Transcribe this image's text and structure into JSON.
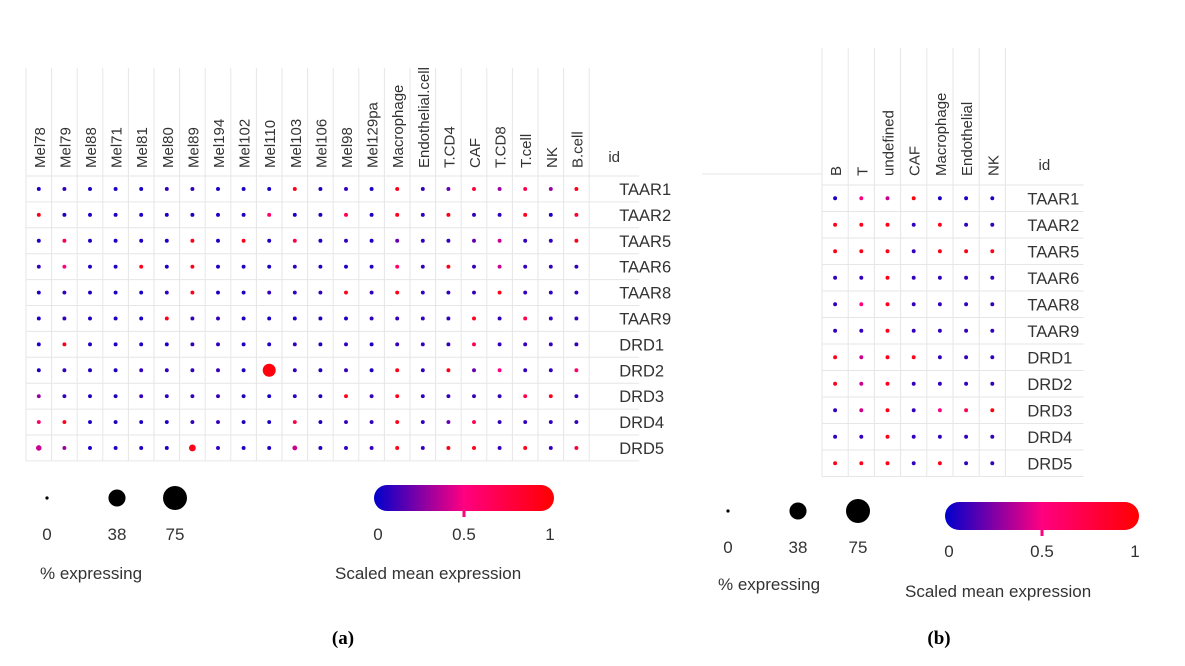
{
  "chart_data": [
    {
      "type": "dotplot",
      "panel_label": "(a)",
      "columns": [
        "Mel78",
        "Mel79",
        "Mel88",
        "Mel71",
        "Mel81",
        "Mel80",
        "Mel89",
        "Mel194",
        "Mel102",
        "Mel110",
        "Mel103",
        "Mel106",
        "Mel98",
        "Mel129pa",
        "Macrophage",
        "Endothelial.cell",
        "T.CD4",
        "CAF",
        "T.CD8",
        "T.cell",
        "NK",
        "B.cell"
      ],
      "id_header": "id",
      "rows": [
        "TAAR1",
        "TAAR2",
        "TAAR5",
        "TAAR6",
        "TAAR8",
        "TAAR9",
        "DRD1",
        "DRD2",
        "DRD3",
        "DRD4",
        "DRD5"
      ],
      "default_pct_expressing": 2,
      "scaled_mean_expression": [
        [
          0.05,
          0.1,
          0.05,
          0.05,
          0.05,
          0.1,
          0.1,
          0.05,
          0.05,
          0.05,
          0.9,
          0.05,
          0.1,
          0.05,
          0.9,
          0.1,
          0.2,
          0.8,
          0.3,
          0.7,
          0.3,
          0.9
        ],
        [
          0.9,
          0.05,
          0.05,
          0.05,
          0.05,
          0.05,
          0.05,
          0.05,
          0.05,
          0.6,
          0.05,
          0.05,
          0.7,
          0.05,
          0.9,
          0.1,
          0.9,
          0.1,
          0.1,
          0.9,
          0.05,
          0.8
        ],
        [
          0.05,
          0.7,
          0.05,
          0.05,
          0.05,
          0.05,
          0.9,
          0.05,
          0.9,
          0.05,
          0.7,
          0.05,
          0.1,
          0.05,
          0.2,
          0.1,
          0.1,
          0.2,
          0.4,
          0.1,
          0.1,
          0.9
        ],
        [
          0.1,
          0.5,
          0.05,
          0.05,
          0.9,
          0.05,
          0.9,
          0.05,
          0.05,
          0.05,
          0.1,
          0.05,
          0.05,
          0.05,
          0.6,
          0.1,
          0.9,
          0.1,
          0.4,
          0.1,
          0.1,
          0.1
        ],
        [
          0.05,
          0.1,
          0.05,
          0.05,
          0.05,
          0.1,
          0.9,
          0.05,
          0.05,
          0.1,
          0.1,
          0.1,
          0.9,
          0.1,
          0.9,
          0.1,
          0.1,
          0.1,
          0.9,
          0.1,
          0.1,
          0.1
        ],
        [
          0.05,
          0.1,
          0.05,
          0.05,
          0.05,
          0.9,
          0.1,
          0.1,
          0.05,
          0.05,
          0.05,
          0.05,
          0.05,
          0.1,
          0.1,
          0.1,
          0.1,
          0.9,
          0.1,
          0.7,
          0.1,
          0.1
        ],
        [
          0.05,
          0.9,
          0.05,
          0.05,
          0.05,
          0.05,
          0.1,
          0.1,
          0.05,
          0.05,
          0.1,
          0.05,
          0.1,
          0.05,
          0.1,
          0.1,
          0.1,
          0.7,
          0.1,
          0.1,
          0.1,
          0.1
        ],
        [
          0.05,
          0.1,
          0.05,
          0.05,
          0.1,
          0.1,
          0.1,
          0.1,
          0.05,
          0.95,
          0.1,
          0.05,
          0.1,
          0.05,
          0.9,
          0.1,
          0.9,
          0.2,
          0.5,
          0.1,
          0.1,
          0.6
        ],
        [
          0.3,
          0.1,
          0.05,
          0.05,
          0.1,
          0.1,
          0.1,
          0.1,
          0.05,
          0.05,
          0.1,
          0.05,
          0.9,
          0.1,
          0.9,
          0.1,
          0.1,
          0.1,
          0.1,
          0.7,
          0.9,
          0.1
        ],
        [
          0.6,
          0.9,
          0.05,
          0.05,
          0.05,
          0.05,
          0.1,
          0.1,
          0.05,
          0.05,
          0.7,
          0.05,
          0.1,
          0.1,
          0.9,
          0.1,
          0.2,
          0.7,
          0.1,
          0.1,
          0.1,
          0.1
        ],
        [
          0.4,
          0.3,
          0.05,
          0.05,
          0.05,
          0.05,
          0.9,
          0.1,
          0.05,
          0.05,
          0.4,
          0.05,
          0.1,
          0.1,
          0.9,
          0.1,
          0.9,
          0.9,
          0.1,
          0.9,
          0.1,
          0.8
        ]
      ],
      "pct_expressing": [
        [
          2,
          2,
          2,
          2,
          2,
          2,
          2,
          2,
          2,
          2,
          2,
          2,
          2,
          2,
          2,
          2,
          2,
          2,
          2,
          2,
          2,
          2
        ],
        [
          2,
          2,
          2,
          2,
          2,
          2,
          2,
          2,
          2,
          2,
          2,
          2,
          2,
          2,
          2,
          2,
          2,
          2,
          2,
          2,
          2,
          2
        ],
        [
          2,
          2,
          2,
          2,
          2,
          2,
          2,
          2,
          2,
          2,
          2,
          2,
          2,
          2,
          2,
          2,
          2,
          2,
          2,
          2,
          2,
          2
        ],
        [
          2,
          2,
          2,
          2,
          2,
          2,
          2,
          2,
          2,
          2,
          2,
          2,
          2,
          2,
          2,
          2,
          2,
          2,
          2,
          2,
          2,
          2
        ],
        [
          2,
          2,
          2,
          2,
          2,
          2,
          2,
          2,
          2,
          2,
          2,
          2,
          2,
          2,
          2,
          2,
          2,
          2,
          2,
          2,
          2,
          2
        ],
        [
          2,
          2,
          2,
          2,
          2,
          2,
          2,
          2,
          2,
          2,
          2,
          2,
          2,
          2,
          2,
          2,
          2,
          2,
          2,
          2,
          2,
          2
        ],
        [
          2,
          2,
          2,
          2,
          2,
          2,
          2,
          2,
          2,
          2,
          2,
          2,
          2,
          2,
          2,
          2,
          2,
          2,
          2,
          2,
          2,
          2
        ],
        [
          2,
          2,
          2,
          2,
          2,
          2,
          2,
          2,
          2,
          22,
          2,
          2,
          2,
          2,
          2,
          2,
          2,
          2,
          2,
          2,
          2,
          2
        ],
        [
          2,
          2,
          2,
          2,
          2,
          2,
          2,
          2,
          2,
          2,
          2,
          2,
          2,
          2,
          2,
          2,
          2,
          2,
          2,
          2,
          2,
          2
        ],
        [
          2,
          2,
          2,
          2,
          2,
          2,
          2,
          2,
          2,
          2,
          2,
          2,
          2,
          2,
          2,
          2,
          2,
          2,
          2,
          2,
          2,
          2
        ],
        [
          4,
          2,
          2,
          2,
          2,
          2,
          6,
          2,
          2,
          2,
          3,
          2,
          2,
          2,
          2,
          2,
          2,
          2,
          2,
          2,
          2,
          2
        ]
      ],
      "size_legend": {
        "title": "% expressing",
        "values": [
          0,
          38,
          75
        ],
        "labels": [
          "0",
          "38",
          "75"
        ]
      },
      "color_legend": {
        "title": "Scaled mean expression",
        "range": [
          0,
          1
        ],
        "ticks": [
          "0",
          "0.5",
          "1"
        ],
        "colors": [
          "#0000cc",
          "#ff0080",
          "#ff0000"
        ]
      }
    },
    {
      "type": "dotplot",
      "panel_label": "(b)",
      "columns": [
        "B",
        "T",
        "undefined",
        "CAF",
        "Macrophage",
        "Endothelial",
        "NK"
      ],
      "id_header": "id",
      "rows": [
        "TAAR1",
        "TAAR2",
        "TAAR5",
        "TAAR6",
        "TAAR8",
        "TAAR9",
        "DRD1",
        "DRD2",
        "DRD3",
        "DRD4",
        "DRD5"
      ],
      "scaled_mean_expression": [
        [
          0.05,
          0.5,
          0.4,
          0.95,
          0.05,
          0.05,
          0.05
        ],
        [
          0.9,
          0.9,
          0.9,
          0.1,
          0.9,
          0.1,
          0.1
        ],
        [
          0.9,
          0.9,
          0.9,
          0.1,
          0.9,
          0.9,
          0.9
        ],
        [
          0.1,
          0.1,
          0.9,
          0.1,
          0.1,
          0.1,
          0.1
        ],
        [
          0.1,
          0.5,
          0.9,
          0.1,
          0.1,
          0.1,
          0.1
        ],
        [
          0.1,
          0.1,
          0.9,
          0.1,
          0.1,
          0.1,
          0.1
        ],
        [
          0.9,
          0.4,
          0.9,
          0.9,
          0.1,
          0.1,
          0.1
        ],
        [
          0.9,
          0.4,
          0.9,
          0.1,
          0.1,
          0.1,
          0.1
        ],
        [
          0.1,
          0.4,
          0.9,
          0.1,
          0.5,
          0.7,
          0.95
        ],
        [
          0.1,
          0.1,
          0.9,
          0.1,
          0.1,
          0.1,
          0.1
        ],
        [
          0.9,
          0.9,
          0.9,
          0.1,
          0.9,
          0.1,
          0.1
        ]
      ],
      "pct_expressing": [
        [
          2,
          2,
          2,
          2,
          2,
          2,
          2
        ],
        [
          2,
          2,
          2,
          2,
          2,
          2,
          2
        ],
        [
          2,
          2,
          2,
          2,
          2,
          2,
          2
        ],
        [
          2,
          2,
          2,
          2,
          2,
          2,
          2
        ],
        [
          2,
          2,
          2,
          2,
          2,
          2,
          2
        ],
        [
          2,
          2,
          2,
          2,
          2,
          2,
          2
        ],
        [
          2,
          2,
          2,
          2,
          2,
          2,
          2
        ],
        [
          2,
          2,
          2,
          2,
          2,
          2,
          2
        ],
        [
          2,
          2,
          2,
          2,
          2,
          2,
          2
        ],
        [
          2,
          2,
          2,
          2,
          2,
          2,
          2
        ],
        [
          2,
          2,
          2,
          2,
          2,
          2,
          2
        ]
      ],
      "size_legend": {
        "title": "% expressing",
        "values": [
          0,
          38,
          75
        ],
        "labels": [
          "0",
          "38",
          "75"
        ]
      },
      "color_legend": {
        "title": "Scaled mean expression",
        "range": [
          0,
          1
        ],
        "ticks": [
          "0",
          "0.5",
          "1"
        ],
        "colors": [
          "#0000cc",
          "#ff0080",
          "#ff0000"
        ]
      }
    }
  ]
}
